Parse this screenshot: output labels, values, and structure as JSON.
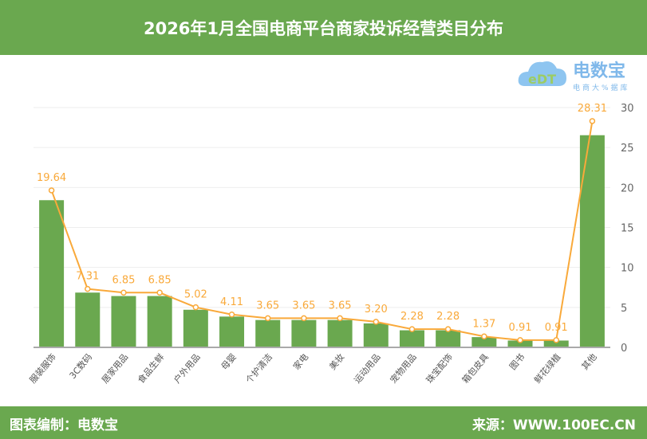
{
  "header": {
    "title": "2026年1月全国电商平台商家投诉经营类目分布"
  },
  "footer": {
    "left": "图表编制：电数宝",
    "right": "来源：WWW.100EC.CN"
  },
  "logo": {
    "name": "电数宝",
    "tagline": "电商大数据库",
    "mark": "eDT"
  },
  "colors": {
    "bar": "#6aa84f",
    "line": "#f9a93a",
    "header": "#6aa84f"
  },
  "chart_data": {
    "type": "bar+line",
    "categories": [
      "服装服饰",
      "3C数码",
      "居家用品",
      "食品生鲜",
      "户外用品",
      "母婴",
      "个护清洁",
      "家电",
      "美妆",
      "运动用品",
      "宠物用品",
      "珠宝配饰",
      "箱包皮具",
      "图书",
      "鲜花绿植",
      "其他"
    ],
    "values": [
      19.64,
      7.31,
      6.85,
      6.85,
      5.02,
      4.11,
      3.65,
      3.65,
      3.65,
      3.2,
      2.28,
      2.28,
      1.37,
      0.91,
      0.91,
      28.31
    ],
    "labels": [
      "19.64",
      "7.31",
      "6.85",
      "6.85",
      "5.02",
      "4.11",
      "3.65",
      "3.65",
      "3.65",
      "3.20",
      "2.28",
      "2.28",
      "1.37",
      "0.91",
      "0.91",
      "28.31"
    ],
    "y_ticks": [
      "0",
      "5",
      "10",
      "15",
      "20",
      "25",
      "30"
    ],
    "ylim": [
      0,
      30
    ],
    "y_axis_side": "right",
    "grid": true
  }
}
